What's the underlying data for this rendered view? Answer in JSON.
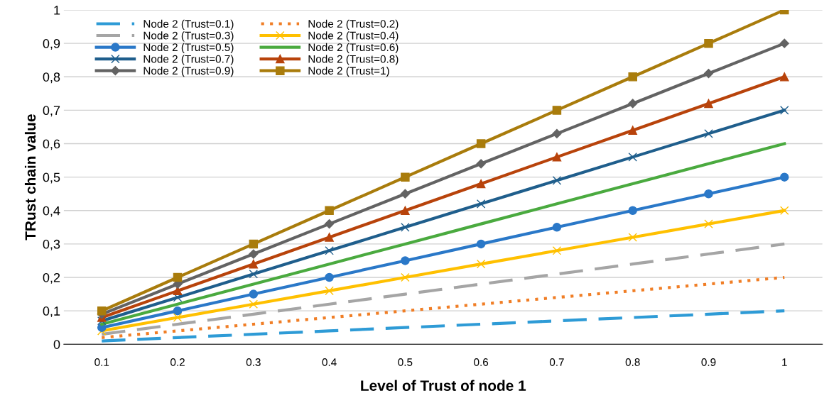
{
  "chart_data": {
    "type": "line",
    "xlabel": "Level of Trust of node 1",
    "ylabel": "TRust chain value",
    "categories": [
      "0.1",
      "0.2",
      "0.3",
      "0.4",
      "0.5",
      "0.6",
      "0.7",
      "0.8",
      "0.9",
      "1"
    ],
    "ylim": [
      0,
      1
    ],
    "yticks": [
      0,
      {
        "value": 0.1,
        "label": "0,1"
      },
      {
        "value": 0.2,
        "label": "0,2"
      },
      {
        "value": 0.3,
        "label": "0,3"
      },
      {
        "value": 0.4,
        "label": "0,4"
      },
      {
        "value": 0.5,
        "label": "0,5"
      },
      {
        "value": 0.6,
        "label": "0,6"
      },
      {
        "value": 0.7,
        "label": "0,7"
      },
      {
        "value": 0.8,
        "label": "0,8"
      },
      {
        "value": 0.9,
        "label": "0,9"
      },
      1
    ],
    "grid": "y",
    "legend": "top left",
    "series": [
      {
        "name": "Node 2 (Trust=0.1)",
        "color": "#2e9bd6",
        "line_style": "dashed",
        "marker": "none",
        "values": [
          0.01,
          0.02,
          0.03,
          0.04,
          0.05,
          0.06,
          0.07,
          0.08,
          0.09,
          0.1
        ]
      },
      {
        "name": "Node 2 (Trust=0.2)",
        "color": "#f07e26",
        "line_style": "dotted",
        "marker": "none",
        "values": [
          0.02,
          0.04,
          0.06,
          0.08,
          0.1,
          0.12,
          0.14,
          0.16,
          0.18,
          0.2
        ]
      },
      {
        "name": "Node 2 (Trust=0.3)",
        "color": "#a5a5a5",
        "line_style": "dashed",
        "marker": "none",
        "values": [
          0.03,
          0.06,
          0.09,
          0.12,
          0.15,
          0.18,
          0.21,
          0.24,
          0.27,
          0.3
        ]
      },
      {
        "name": "Node 2 (Trust=0.4)",
        "color": "#ffc000",
        "line_style": "solid",
        "marker": "cross",
        "values": [
          0.04,
          0.08,
          0.12,
          0.16,
          0.2,
          0.24,
          0.28,
          0.32,
          0.36,
          0.4
        ]
      },
      {
        "name": "Node 2 (Trust=0.5)",
        "color": "#2a78c8",
        "line_style": "solid",
        "marker": "circle",
        "values": [
          0.05,
          0.1,
          0.15,
          0.2,
          0.25,
          0.3,
          0.35,
          0.4,
          0.45,
          0.5
        ]
      },
      {
        "name": "Node 2 (Trust=0.6)",
        "color": "#4aaa3f",
        "line_style": "solid",
        "marker": "none",
        "values": [
          0.06,
          0.12,
          0.18,
          0.24,
          0.3,
          0.36,
          0.42,
          0.48,
          0.54,
          0.6
        ]
      },
      {
        "name": "Node 2 (Trust=0.7)",
        "color": "#1f5e8c",
        "line_style": "solid",
        "marker": "cross",
        "values": [
          0.07,
          0.14,
          0.21,
          0.28,
          0.35,
          0.42,
          0.49,
          0.56,
          0.63,
          0.7
        ]
      },
      {
        "name": "Node 2 (Trust=0.8)",
        "color": "#b8430b",
        "line_style": "solid",
        "marker": "triangle",
        "values": [
          0.08,
          0.16,
          0.24,
          0.32,
          0.4,
          0.48,
          0.56,
          0.64,
          0.72,
          0.8
        ]
      },
      {
        "name": "Node 2 (Trust=0.9)",
        "color": "#636363",
        "line_style": "solid",
        "marker": "diamond",
        "values": [
          0.09,
          0.18,
          0.27,
          0.36,
          0.45,
          0.54,
          0.63,
          0.72,
          0.81,
          0.9
        ]
      },
      {
        "name": "Node 2 (Trust=1)",
        "color": "#a97c0c",
        "line_style": "solid",
        "marker": "square",
        "values": [
          0.1,
          0.2,
          0.3,
          0.4,
          0.5,
          0.6,
          0.7,
          0.8,
          0.9,
          1.0
        ]
      }
    ]
  }
}
